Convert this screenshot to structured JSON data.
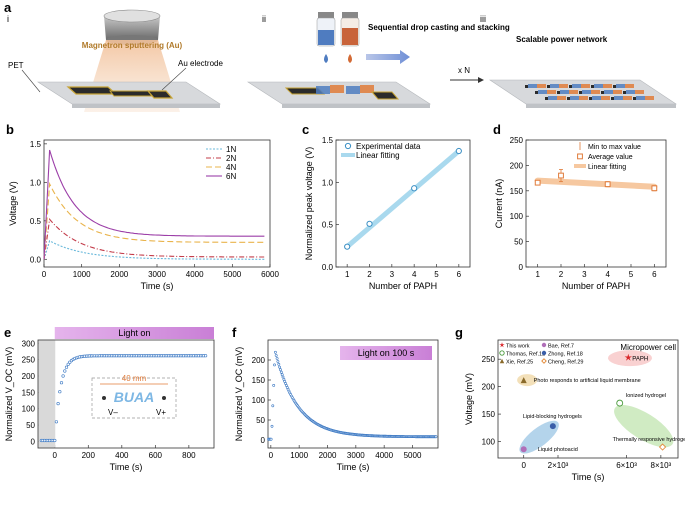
{
  "panel_labels": {
    "a": "a",
    "b": "b",
    "c": "c",
    "d": "d",
    "e": "e",
    "f": "f",
    "g": "g"
  },
  "panel_a": {
    "steps": [
      "i",
      "ii",
      "iii"
    ],
    "magnetron": "Magnetron sputtering (Au)",
    "au_electrode": "Au electrode",
    "pet": "PET",
    "sequential": "Sequential drop casting and stacking",
    "times_n": "x N",
    "scalable": "Scalable power network",
    "colors": {
      "blue": "#4f7cc0",
      "orange": "#e07b3a",
      "gold": "#b89a2a",
      "substrate": "#d7d9dc"
    }
  },
  "chart_data": [
    {
      "panel": "b",
      "type": "line",
      "title": "",
      "xlabel": "Time (s)",
      "ylabel": "Voltage (V)",
      "xlim": [
        0,
        6000
      ],
      "ylim": [
        -0.1,
        1.55
      ],
      "xticks": [
        0,
        1000,
        2000,
        3000,
        4000,
        5000,
        6000
      ],
      "yticks": [
        0,
        0.5,
        1.0,
        1.5
      ],
      "ytick_labels": [
        "0.0",
        "0.5",
        "1.0",
        "1.5"
      ],
      "legend": "top-right",
      "series": [
        {
          "name": "1N",
          "color": "#6ab9db",
          "dash": "2,1.5",
          "peak": 0.24,
          "end": 0.0
        },
        {
          "name": "2N",
          "color": "#c33c4a",
          "dash": "5,2,1,2",
          "peak": 0.52,
          "end": 0.03
        },
        {
          "name": "4N",
          "color": "#e9b44c",
          "dash": "6,3",
          "peak": 0.98,
          "end": 0.22
        },
        {
          "name": "6N",
          "color": "#9c3fa8",
          "dash": "",
          "peak": 1.42,
          "end": 0.3
        }
      ]
    },
    {
      "panel": "c",
      "type": "scatter",
      "title": "",
      "xlabel": "Number of PAPH",
      "ylabel": "Normalized peak voltage (V)",
      "xlim": [
        0.5,
        6.5
      ],
      "ylim": [
        0,
        1.5
      ],
      "xticks": [
        1,
        2,
        3,
        4,
        5,
        6
      ],
      "yticks": [
        0,
        0.5,
        1.0,
        1.5
      ],
      "ytick_labels": [
        "0.0",
        "0.5",
        "1.0",
        "1.5"
      ],
      "x": [
        1,
        2,
        4,
        6
      ],
      "y": [
        0.24,
        0.51,
        0.93,
        1.37
      ],
      "fit": {
        "x": [
          1,
          6
        ],
        "y": [
          0.24,
          1.37
        ]
      },
      "legend": [
        "Experimental data",
        "Linear fitting"
      ],
      "legend_position": "top-left"
    },
    {
      "panel": "d",
      "type": "scatter",
      "title": "",
      "xlabel": "Number of PAPH",
      "ylabel": "Current (nA)",
      "xlim": [
        0.5,
        6.5
      ],
      "ylim": [
        0,
        250
      ],
      "xticks": [
        1,
        2,
        3,
        4,
        5,
        6
      ],
      "yticks": [
        0,
        50,
        100,
        150,
        200,
        250
      ],
      "x": [
        1,
        2,
        4,
        6
      ],
      "y": [
        166,
        180,
        163,
        155
      ],
      "err_low": [
        162,
        168,
        158,
        150
      ],
      "err_high": [
        170,
        192,
        168,
        160
      ],
      "fit": {
        "x": [
          1,
          6
        ],
        "y": [
          170,
          158
        ]
      },
      "legend": [
        "Min to max value",
        "Average value",
        "Linear fitting"
      ],
      "legend_position": "top-right"
    },
    {
      "panel": "e",
      "type": "line",
      "title": "",
      "xlabel": "Time (s)",
      "ylabel": "Normalized V_OC (mV)",
      "xlim": [
        -100,
        950
      ],
      "ylim": [
        -20,
        310
      ],
      "xticks": [
        0,
        200,
        400,
        600,
        800
      ],
      "yticks": [
        0,
        50,
        100,
        150,
        200,
        250,
        300
      ],
      "annotation": "Light on",
      "light_on_from": 0,
      "inset": {
        "width_label": "40 mm",
        "word": "BUAA",
        "neg": "V–",
        "pos": "V+"
      },
      "series": [
        {
          "name": "VOC",
          "color": "#3b78c3",
          "plateau": 262,
          "baseline": 3
        }
      ]
    },
    {
      "panel": "f",
      "type": "line",
      "title": "",
      "xlabel": "Time (s)",
      "ylabel": "Normalized V_OC (mV)",
      "xlim": [
        -100,
        5900
      ],
      "ylim": [
        -20,
        250
      ],
      "xticks": [
        0,
        1000,
        2000,
        3000,
        4000,
        5000
      ],
      "yticks": [
        0,
        50,
        100,
        150,
        200
      ],
      "annotation": "Light on 100 s",
      "series": [
        {
          "name": "VOC",
          "color": "#3b78c3",
          "peak": 222,
          "end": 8
        }
      ]
    },
    {
      "panel": "g",
      "type": "scatter",
      "title": "",
      "xlabel": "Time (s)",
      "ylabel": "Voltage (mV)",
      "xlim": [
        -1500,
        9000
      ],
      "ylim": [
        70,
        285
      ],
      "xticks": [
        0,
        2000,
        6000,
        8000
      ],
      "xtick_labels": [
        "0",
        "2×10³",
        "6×10³",
        "8×10³"
      ],
      "yticks": [
        100,
        150,
        200,
        250
      ],
      "corner_label": "Micropower cell",
      "legend": [
        {
          "name": "This work",
          "color": "#d9262a",
          "marker": "star"
        },
        {
          "name": "Bae, Ref.7",
          "color": "#b06fb8",
          "marker": "circle"
        },
        {
          "name": "Thomas, Ref.12",
          "color": "#4a9a3c",
          "marker": "ring"
        },
        {
          "name": "Zhong, Ref.18",
          "color": "#3a5ea8",
          "marker": "circle"
        },
        {
          "name": "Xie, Ref.25",
          "color": "#8a6a2a",
          "marker": "triangle"
        },
        {
          "name": "Cheng, Ref.29",
          "color": "#e38a39",
          "marker": "diamond"
        }
      ],
      "points": [
        {
          "label": "PAPH",
          "x": 6100,
          "y": 253,
          "color": "#d9262a",
          "marker": "star"
        },
        {
          "label": "Photo responds to artificial liquid membrane",
          "x": 0,
          "y": 212,
          "color": "#8a6a2a",
          "marker": "triangle"
        },
        {
          "label": "Ionized hydrogel",
          "x": 5600,
          "y": 170,
          "color": "#4a9a3c",
          "marker": "ring"
        },
        {
          "label": "Lipid-blocking hydrogels",
          "x": 1700,
          "y": 128,
          "color": "#3a5ea8",
          "marker": "circle"
        },
        {
          "label": "Thermally responsive hydrogel",
          "x": 8100,
          "y": 90,
          "color": "#e38a39",
          "marker": "diamond"
        },
        {
          "label": "Liquid photoacid",
          "x": 0,
          "y": 86,
          "color": "#b06fb8",
          "marker": "circle"
        }
      ]
    }
  ]
}
